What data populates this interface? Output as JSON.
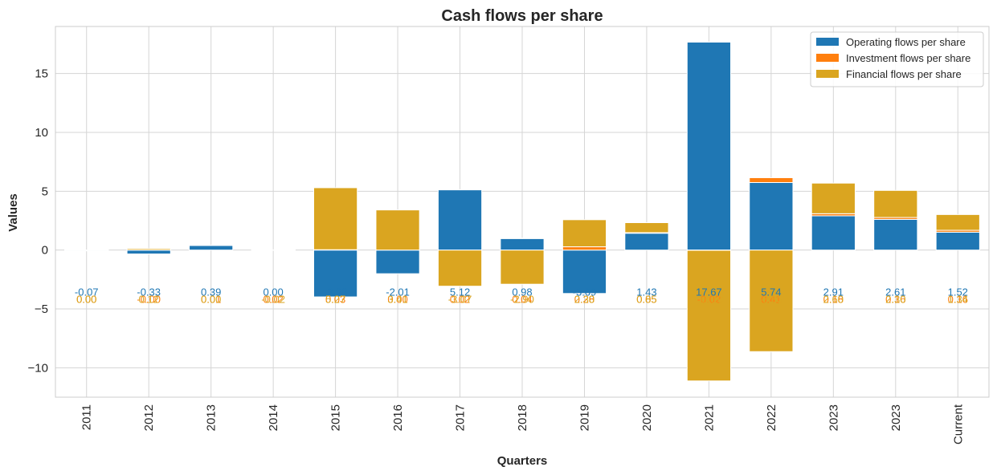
{
  "chart_data": {
    "type": "bar",
    "stacked": true,
    "title": "Cash flows per share",
    "xlabel": "Quarters",
    "ylabel": "Values",
    "ylim": [
      -12.5,
      19
    ],
    "yticks": [
      -10,
      -5,
      0,
      5,
      10,
      15
    ],
    "ytick_labels": [
      "−10",
      "−5",
      "0",
      "5",
      "10",
      "15"
    ],
    "grid": true,
    "legend_position": "top-right",
    "categories": [
      "2011",
      "2012",
      "2013",
      "2014",
      "2015",
      "2016",
      "2017",
      "2018",
      "2019",
      "2020",
      "2021",
      "2022",
      "2023",
      "2023",
      "Current"
    ],
    "series": [
      {
        "name": "Operating flows per share",
        "color": "#1f77b4",
        "values": [
          -0.07,
          -0.33,
          0.39,
          0.0,
          -3.98,
          -2.01,
          5.12,
          0.98,
          -3.69,
          1.43,
          17.67,
          5.74,
          2.91,
          2.61,
          1.52
        ],
        "labels": [
          "-0.07",
          "-0.33",
          "0.39",
          "0.00",
          "-3.98",
          "-2.01",
          "5.12",
          "0.98",
          "-3.69",
          "1.43",
          "17.67",
          "5.74",
          "2.91",
          "2.61",
          "1.52"
        ]
      },
      {
        "name": "Investment flows per share",
        "color": "#ff7f0e",
        "values": [
          0.0,
          0.0,
          0.01,
          0.02,
          0.03,
          0.0,
          0.02,
          0.04,
          0.28,
          0.05,
          -0.02,
          0.41,
          0.18,
          0.16,
          0.16
        ],
        "labels": [
          "0.00",
          "-0.00",
          "0.01",
          "0.02",
          "0.03",
          "0.00",
          "0.02",
          "0.04",
          "0.28",
          "0.05",
          "-0.02",
          "0.41",
          "0.18",
          "0.16",
          "0.16"
        ]
      },
      {
        "name": "Financial flows per share",
        "color": "#daa520",
        "values": [
          0.0,
          0.12,
          0.0,
          -0.02,
          5.27,
          3.41,
          -3.07,
          -2.9,
          2.3,
          0.85,
          -11.1,
          -8.63,
          2.6,
          2.3,
          1.34
        ],
        "labels": [
          "0.00",
          "0.12",
          "0.00",
          "-0.02",
          "5.27",
          "3.41",
          "-3.07",
          "-2.90",
          "2.30",
          "0.85",
          "-11.10",
          "-8.63",
          "2.60",
          "2.30",
          "1.34"
        ]
      }
    ]
  }
}
